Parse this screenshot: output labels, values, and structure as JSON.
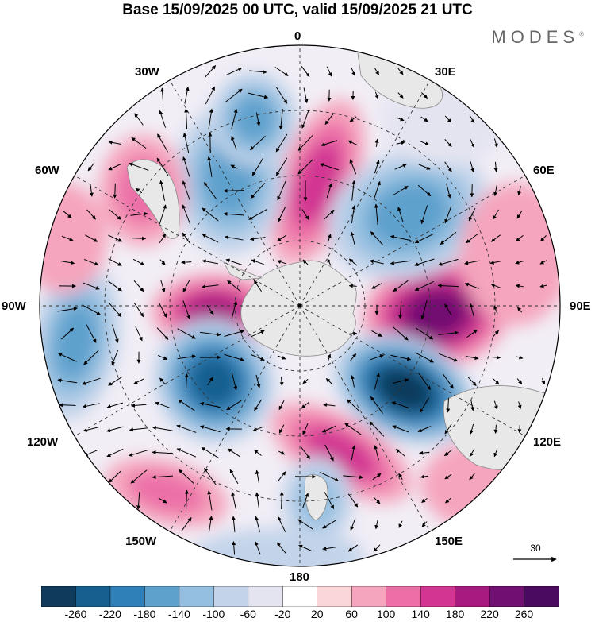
{
  "title": "Base 15/09/2025 00 UTC, valid 15/09/2025 21 UTC",
  "brand": "MODES",
  "brand_mark": "®",
  "longitude_labels": {
    "lon_0": "0",
    "lon_30e": "30E",
    "lon_60e": "60E",
    "lon_90e": "90E",
    "lon_120e": "120E",
    "lon_150e": "150E",
    "lon_180": "180",
    "lon_150w": "150W",
    "lon_120w": "120W",
    "lon_90w": "90W",
    "lon_60w": "60W",
    "lon_30w": "30W"
  },
  "reference_vector": {
    "label": "30"
  },
  "colorbar": {
    "tick_labels": [
      "-260",
      "-220",
      "-180",
      "-140",
      "-100",
      "-60",
      "-20",
      "20",
      "60",
      "100",
      "140",
      "180",
      "220",
      "260"
    ],
    "colors": [
      "#103a5c",
      "#165f8f",
      "#2f7fb8",
      "#5ea1cd",
      "#94bfe0",
      "#c3d4ea",
      "#e4e4f0",
      "#ffffff",
      "#fbd6d8",
      "#f5a5bd",
      "#ec6fa7",
      "#d23592",
      "#a81a80",
      "#720f72",
      "#4a0a5e"
    ]
  },
  "map_colors": {
    "antarctica": "#e8e8e8",
    "land_outline": "#888888",
    "grid": "#333333"
  }
}
